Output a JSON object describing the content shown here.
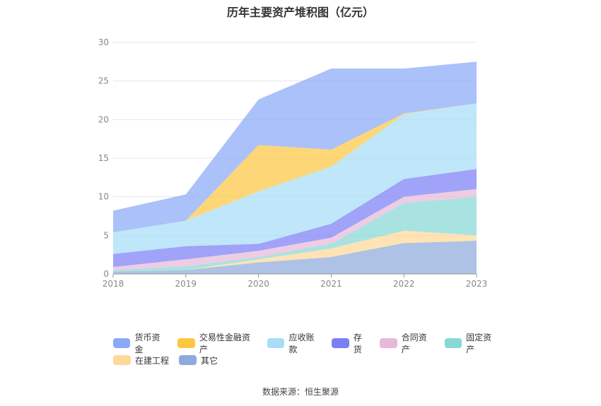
{
  "title": "历年主要资产堆积图（亿元）",
  "source": "数据来源：恒生聚源",
  "chart_data": {
    "type": "area",
    "stacked": true,
    "x": [
      "2018",
      "2019",
      "2020",
      "2021",
      "2022",
      "2023"
    ],
    "ylim": [
      0,
      30
    ],
    "yticks": [
      0,
      5,
      10,
      15,
      20,
      25,
      30
    ],
    "grid": true,
    "legend_position": "bottom",
    "series": [
      {
        "name": "其它",
        "color": "#8eaadb",
        "values": [
          0.3,
          0.5,
          1.5,
          2.2,
          4.0,
          4.3
        ]
      },
      {
        "name": "在建工程",
        "color": "#ffd899",
        "values": [
          0.0,
          0.0,
          0.4,
          1.1,
          1.6,
          0.7
        ]
      },
      {
        "name": "固定资产",
        "color": "#88d8d6",
        "values": [
          0.2,
          0.5,
          0.3,
          0.6,
          3.6,
          5.0
        ]
      },
      {
        "name": "合同资产",
        "color": "#e8b8d8",
        "values": [
          0.4,
          0.9,
          0.8,
          0.8,
          0.8,
          1.0
        ]
      },
      {
        "name": "存货",
        "color": "#7b7ff5",
        "values": [
          1.7,
          1.7,
          0.9,
          1.8,
          2.3,
          2.6
        ]
      },
      {
        "name": "应收账款",
        "color": "#a8dcf8",
        "values": [
          2.8,
          3.3,
          6.8,
          7.4,
          8.4,
          8.5
        ]
      },
      {
        "name": "交易性金融资产",
        "color": "#fcc742",
        "values": [
          0.0,
          0.0,
          6.0,
          2.2,
          0.1,
          0.0
        ]
      },
      {
        "name": "货币资金",
        "color": "#8aa9f7",
        "values": [
          2.8,
          3.4,
          5.9,
          10.5,
          5.8,
          5.4
        ]
      }
    ],
    "legend_order": [
      "货币资金",
      "交易性金融资产",
      "应收账款",
      "存货",
      "合同资产",
      "固定资产",
      "在建工程",
      "其它"
    ]
  }
}
